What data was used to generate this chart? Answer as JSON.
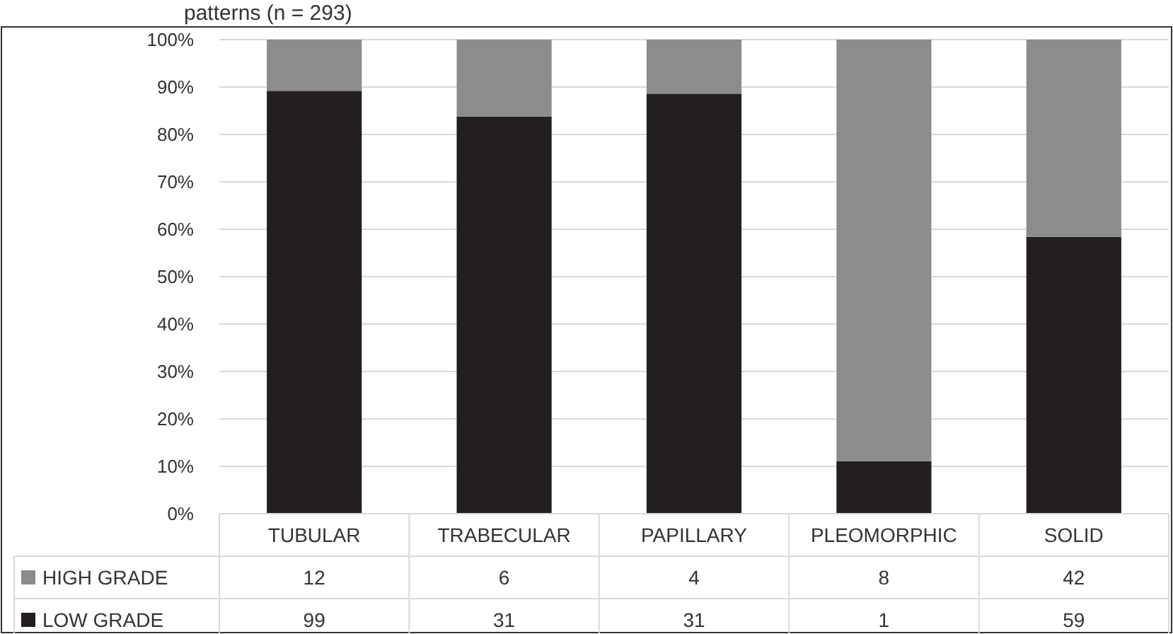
{
  "chart_data": {
    "type": "bar",
    "stacked": true,
    "title": "patterns (n = 293)",
    "categories": [
      "TUBULAR",
      "TRABECULAR",
      "PAPILLARY",
      "PLEOMORPHIC",
      "SOLID"
    ],
    "series": [
      {
        "name": "LOW GRADE",
        "color": "#231f20",
        "values": [
          89.2,
          83.8,
          88.6,
          11.1,
          58.4
        ]
      },
      {
        "name": "HIGH GRADE",
        "color": "#8c8c8c",
        "values": [
          10.8,
          16.2,
          11.4,
          88.9,
          41.6
        ]
      }
    ],
    "annotations": [
      "12",
      "6",
      "4",
      "8",
      "42",
      "99",
      "31",
      "31",
      "1",
      "59"
    ],
    "ylim": [
      0,
      100
    ],
    "yticks": [
      {
        "value": 0,
        "label": "0%"
      },
      {
        "value": 10,
        "label": "10%"
      },
      {
        "value": 20,
        "label": "20%"
      },
      {
        "value": 30,
        "label": "30%"
      },
      {
        "value": 40,
        "label": "40%"
      },
      {
        "value": 50,
        "label": "50%"
      },
      {
        "value": 60,
        "label": "60%"
      },
      {
        "value": 70,
        "label": "70%"
      },
      {
        "value": 80,
        "label": "80%"
      },
      {
        "value": 90,
        "label": "90%"
      },
      {
        "value": 100,
        "label": "100%"
      }
    ],
    "grid": "y",
    "legend": "bottom"
  }
}
